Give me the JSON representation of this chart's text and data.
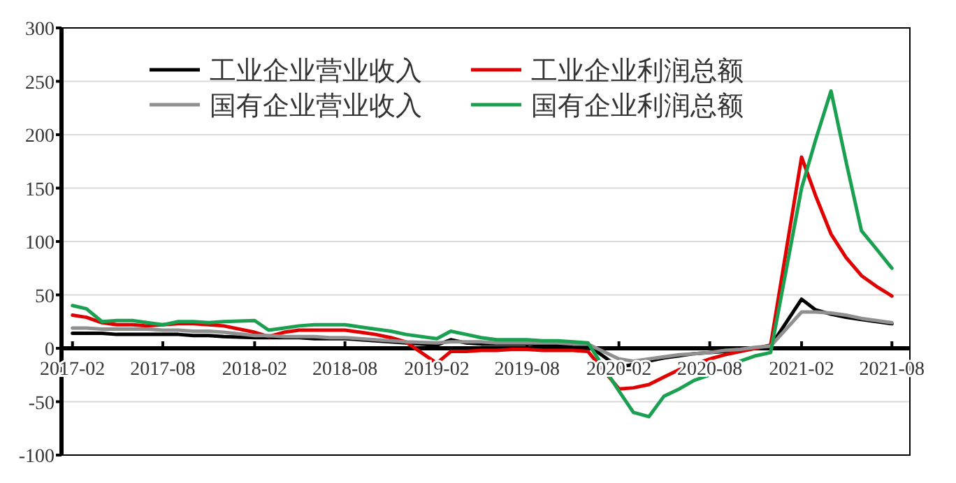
{
  "chart_data": {
    "type": "line",
    "x": [
      "2017-02",
      "2017-03",
      "2017-04",
      "2017-05",
      "2017-06",
      "2017-07",
      "2017-08",
      "2017-09",
      "2017-10",
      "2017-11",
      "2017-12",
      "2018-02",
      "2018-03",
      "2018-04",
      "2018-05",
      "2018-06",
      "2018-07",
      "2018-08",
      "2018-09",
      "2018-10",
      "2018-11",
      "2018-12",
      "2019-02",
      "2019-03",
      "2019-04",
      "2019-05",
      "2019-06",
      "2019-07",
      "2019-08",
      "2019-09",
      "2019-10",
      "2019-11",
      "2019-12",
      "2020-02",
      "2020-03",
      "2020-04",
      "2020-05",
      "2020-06",
      "2020-07",
      "2020-08",
      "2020-09",
      "2020-10",
      "2020-11",
      "2020-12",
      "2021-02",
      "2021-03",
      "2021-04",
      "2021-05",
      "2021-06",
      "2021-07",
      "2021-08"
    ],
    "series": [
      {
        "name": "工业企业营业收入",
        "color": "#000000",
        "values": [
          14,
          14,
          14,
          13,
          13,
          13,
          13,
          13,
          12,
          12,
          11,
          10,
          10,
          10,
          10,
          9,
          9,
          9,
          8,
          7,
          6,
          5,
          3,
          8,
          5,
          4,
          4,
          4,
          4,
          3,
          3,
          3,
          3,
          -18,
          -15,
          -12,
          -9,
          -7,
          -5,
          -4,
          -3,
          -1,
          0,
          2,
          46,
          36,
          32,
          29,
          27,
          25,
          23
        ]
      },
      {
        "name": "工业企业利润总额",
        "color": "#e00000",
        "values": [
          31,
          29,
          24,
          22,
          22,
          21,
          22,
          23,
          23,
          22,
          21,
          15,
          11,
          15,
          17,
          17,
          17,
          17,
          15,
          13,
          10,
          6,
          -14,
          -3,
          -3,
          -2,
          -2,
          -1,
          -1,
          -2,
          -2,
          -2,
          -3,
          -38,
          -37,
          -34,
          -27,
          -20,
          -15,
          -10,
          -6,
          -3,
          0,
          3,
          179,
          143,
          107,
          85,
          68,
          58,
          49
        ]
      },
      {
        "name": "国有企业营业收入",
        "color": "#909090",
        "values": [
          19,
          19,
          18,
          18,
          18,
          18,
          17,
          17,
          16,
          16,
          15,
          12,
          12,
          11,
          11,
          11,
          10,
          10,
          9,
          8,
          7,
          6,
          5,
          6,
          6,
          6,
          5,
          5,
          5,
          5,
          5,
          4,
          4,
          -10,
          -12,
          -10,
          -8,
          -6,
          -5,
          -4,
          -2,
          -1,
          1,
          2,
          34,
          34,
          33,
          31,
          28,
          26,
          24
        ]
      },
      {
        "name": "国有企业利润总额",
        "color": "#1aa050",
        "values": [
          40,
          37,
          25,
          26,
          26,
          24,
          22,
          25,
          25,
          24,
          25,
          26,
          17,
          19,
          21,
          22,
          22,
          22,
          20,
          18,
          16,
          13,
          9,
          16,
          13,
          10,
          8,
          8,
          8,
          7,
          7,
          6,
          5,
          -40,
          -60,
          -64,
          -45,
          -38,
          -30,
          -25,
          -18,
          -12,
          -7,
          -4,
          150,
          195,
          241,
          175,
          110,
          93,
          75
        ]
      }
    ],
    "xlim": [
      "2017-01-10",
      "2021-09-06"
    ],
    "xticks": [
      {
        "value": "2017-02",
        "label": "2017-02"
      },
      {
        "value": "2017-08",
        "label": "2017-08"
      },
      {
        "value": "2018-02",
        "label": "2018-02"
      },
      {
        "value": "2018-08",
        "label": "2018-08"
      },
      {
        "value": "2019-02",
        "label": "2019-02"
      },
      {
        "value": "2019-08",
        "label": "2019-08"
      },
      {
        "value": "2020-02",
        "label": "2020-02"
      },
      {
        "value": "2020-08",
        "label": "2020-08"
      },
      {
        "value": "2021-02",
        "label": "2021-02"
      },
      {
        "value": "2021-08",
        "label": "2021-08"
      }
    ],
    "ylim": [
      -100,
      300
    ],
    "yticks": [
      -100,
      -50,
      0,
      50,
      100,
      150,
      200,
      250,
      300
    ],
    "grid": "y",
    "legend": "top",
    "marker": "none",
    "line_style": "solid"
  }
}
